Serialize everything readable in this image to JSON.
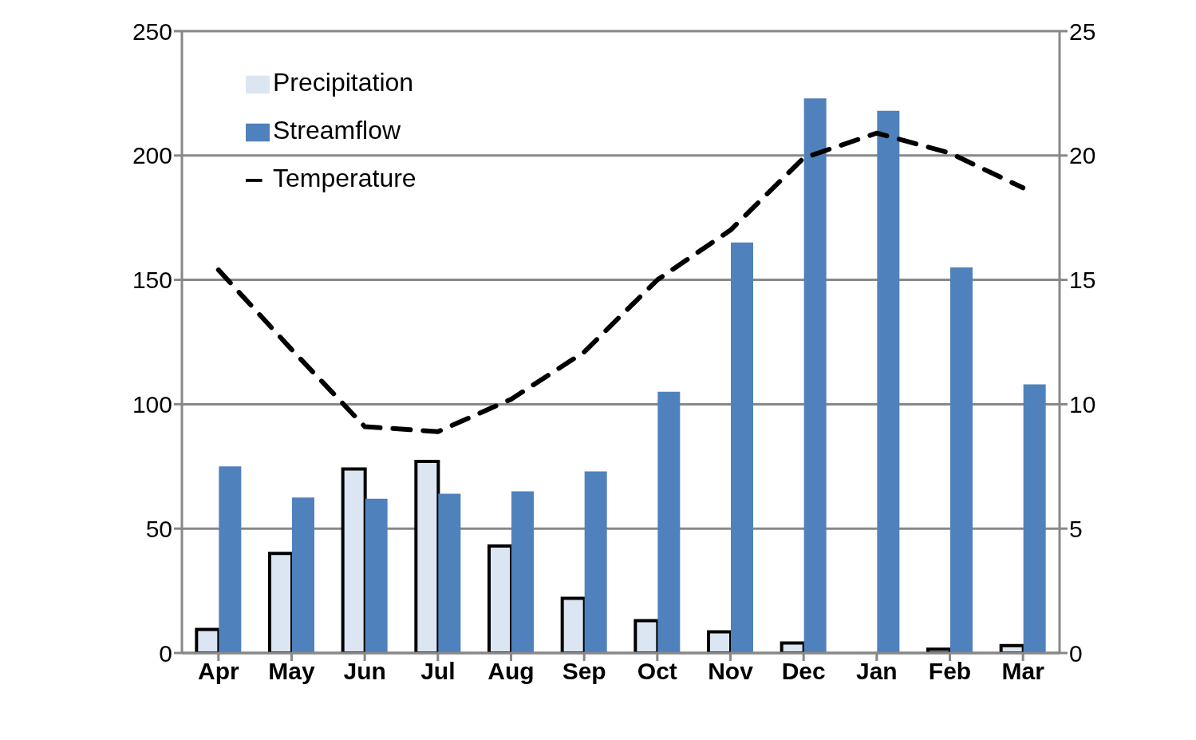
{
  "chart_data": {
    "type": "bar",
    "categories": [
      "Apr",
      "May",
      "Jun",
      "Jul",
      "Aug",
      "Sep",
      "Oct",
      "Nov",
      "Dec",
      "Jan",
      "Feb",
      "Mar"
    ],
    "series": [
      {
        "name": "Precipitation",
        "color": "#dce6f2",
        "values": [
          9.5,
          40,
          74,
          77,
          43,
          22,
          13,
          8.5,
          4,
          0,
          1.5,
          3
        ]
      },
      {
        "name": "Streamflow",
        "color": "#4f81bd",
        "values": [
          75,
          62.5,
          62,
          64,
          65,
          73,
          105,
          165,
          223,
          218,
          155,
          108
        ]
      },
      {
        "name": "Temperature",
        "type": "line",
        "axis": "y2",
        "color": "#000000",
        "line_style": "dashed",
        "values": [
          15.4,
          12.2,
          9.1,
          8.9,
          10.2,
          12.1,
          15.0,
          17.0,
          19.9,
          20.9,
          20.1,
          18.7
        ]
      }
    ],
    "ylim": [
      0,
      250
    ],
    "yticks": [
      0,
      50,
      100,
      150,
      200,
      250
    ],
    "y2lim": [
      0,
      25
    ],
    "y2ticks": [
      0,
      5,
      10,
      15,
      20,
      25
    ],
    "grid": "y",
    "legend": "top left",
    "marker": "none"
  }
}
